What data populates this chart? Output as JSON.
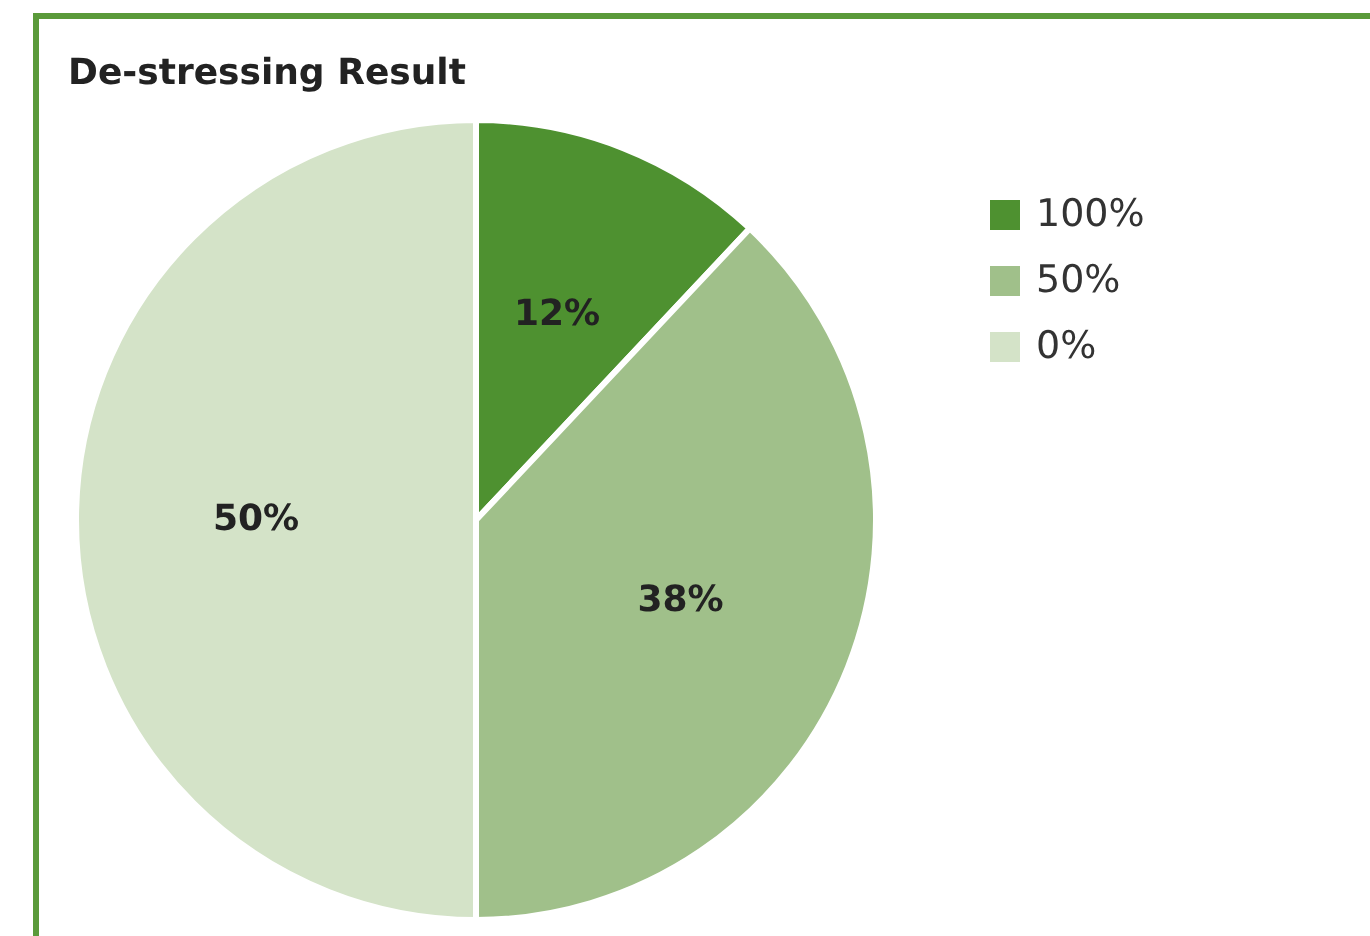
{
  "chart_data": {
    "type": "pie",
    "title": "De-stressing Result",
    "categories": [
      "100%",
      "50%",
      "0%"
    ],
    "values": [
      12,
      38,
      50
    ],
    "colors": [
      "#4e9130",
      "#a0c08a",
      "#d4e3c8"
    ],
    "value_labels": [
      "12%",
      "38%",
      "50%"
    ],
    "legend": "right"
  }
}
